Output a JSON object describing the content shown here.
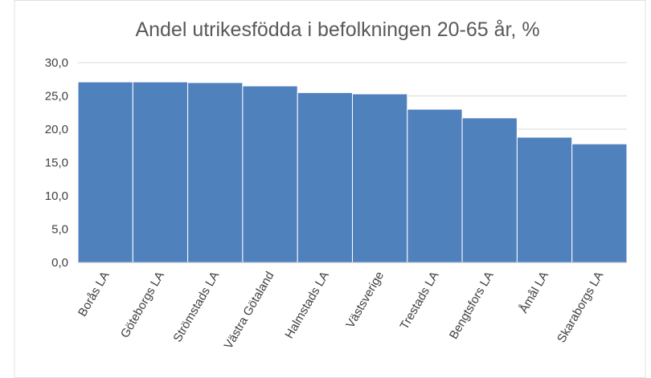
{
  "chart_data": {
    "type": "bar",
    "title": "Andel utrikesfödda i befolkningen 20-65 år, %",
    "categories": [
      "Borås LA",
      "Göteborgs LA",
      "Strömstads LA",
      "Västra Götaland",
      "Halmstads LA",
      "Västsverige",
      "Trestads LA",
      "Bengtsfors LA",
      "Åmål LA",
      "Skaraborgs LA"
    ],
    "values": [
      27.1,
      27.1,
      27.0,
      26.5,
      25.5,
      25.3,
      23.0,
      21.7,
      18.8,
      17.8
    ],
    "color": "#4f81bd",
    "ylim": [
      0,
      30
    ],
    "yticks": [
      {
        "value": 0,
        "label": "0,0"
      },
      {
        "value": 5,
        "label": "5,0"
      },
      {
        "value": 10,
        "label": "10,0"
      },
      {
        "value": 15,
        "label": "15,0"
      },
      {
        "value": 20,
        "label": "20,0"
      },
      {
        "value": 25,
        "label": "25,0"
      },
      {
        "value": 30,
        "label": "30,0"
      }
    ],
    "grid": true
  }
}
